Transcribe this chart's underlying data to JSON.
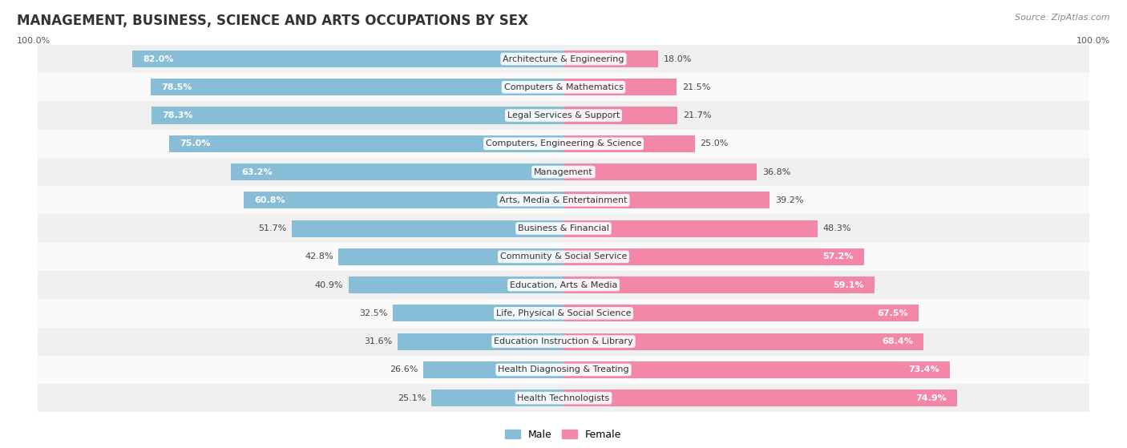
{
  "title": "MANAGEMENT, BUSINESS, SCIENCE AND ARTS OCCUPATIONS BY SEX",
  "source": "Source: ZipAtlas.com",
  "categories": [
    "Architecture & Engineering",
    "Computers & Mathematics",
    "Legal Services & Support",
    "Computers, Engineering & Science",
    "Management",
    "Arts, Media & Entertainment",
    "Business & Financial",
    "Community & Social Service",
    "Education, Arts & Media",
    "Life, Physical & Social Science",
    "Education Instruction & Library",
    "Health Diagnosing & Treating",
    "Health Technologists"
  ],
  "male_pct": [
    82.0,
    78.5,
    78.3,
    75.0,
    63.2,
    60.8,
    51.7,
    42.8,
    40.9,
    32.5,
    31.6,
    26.6,
    25.1
  ],
  "female_pct": [
    18.0,
    21.5,
    21.7,
    25.0,
    36.8,
    39.2,
    48.3,
    57.2,
    59.1,
    67.5,
    68.4,
    73.4,
    74.9
  ],
  "male_color": "#88bdd8",
  "female_color": "#f387a8",
  "bg_row_even": "#f0f0f0",
  "bg_row_odd": "#fafafa",
  "title_fontsize": 12,
  "bar_text_fontsize": 8,
  "label_fontsize": 8,
  "legend_fontsize": 9,
  "source_fontsize": 8,
  "male_label_inside_threshold": 55,
  "female_label_inside_threshold": 55
}
